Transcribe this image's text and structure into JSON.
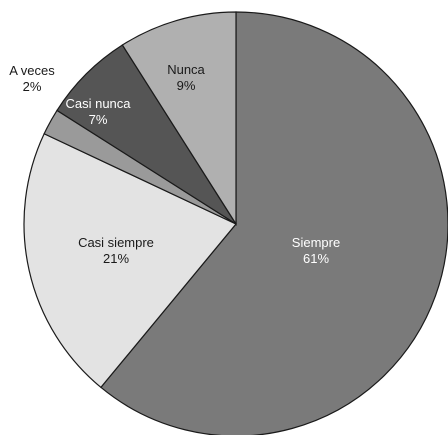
{
  "chart_data": {
    "type": "pie",
    "start_angle_deg": 0,
    "direction": "clockwise",
    "slices": [
      {
        "label": "Siempre",
        "value": 61,
        "value_label": "61%",
        "color": "#7a7a7a",
        "text_color": "#ffffff"
      },
      {
        "label": "Casi siempre",
        "value": 21,
        "value_label": "21%",
        "color": "#e3e3e3",
        "text_color": "#1a1a1a"
      },
      {
        "label": "A veces",
        "value": 2,
        "value_label": "2%",
        "color": "#9a9a9a",
        "text_color": "#1a1a1a"
      },
      {
        "label": "Casi nunca",
        "value": 7,
        "value_label": "7%",
        "color": "#555555",
        "text_color": "#ffffff"
      },
      {
        "label": "Nunca",
        "value": 9,
        "value_label": "9%",
        "color": "#b0b0b0",
        "text_color": "#1a1a1a"
      }
    ]
  }
}
